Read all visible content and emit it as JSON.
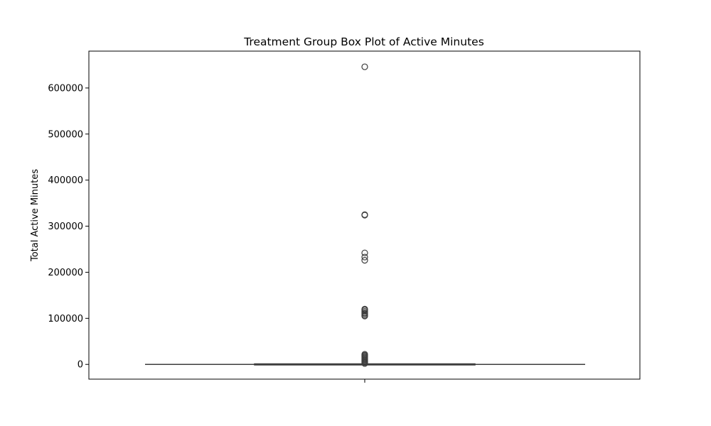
{
  "chart_data": {
    "type": "box",
    "title": "Treatment Group Box Plot of Active Minutes",
    "xlabel": "",
    "ylabel": "Total Active Minutes",
    "ylim": [
      -32000,
      680000
    ],
    "yticks": [
      0,
      100000,
      200000,
      300000,
      400000,
      500000,
      600000
    ],
    "ytick_labels": [
      "0",
      "100000",
      "200000",
      "300000",
      "400000",
      "500000",
      "600000"
    ],
    "grid": false,
    "box": {
      "q1": 0,
      "median": 0,
      "q3": 0,
      "whisker_low": 0,
      "whisker_high": 0
    },
    "outliers": [
      646000,
      325000,
      324000,
      242000,
      233000,
      226000,
      120000,
      118000,
      115000,
      112000,
      110000,
      107000,
      105000,
      22000,
      20000,
      18000,
      16000,
      14000,
      12000,
      10000,
      8000,
      6000,
      4000,
      2000
    ],
    "colors": {
      "box_edge": "#3d3d3d",
      "outlier_edge": "#3d3d3d",
      "axes": "#000000"
    }
  }
}
